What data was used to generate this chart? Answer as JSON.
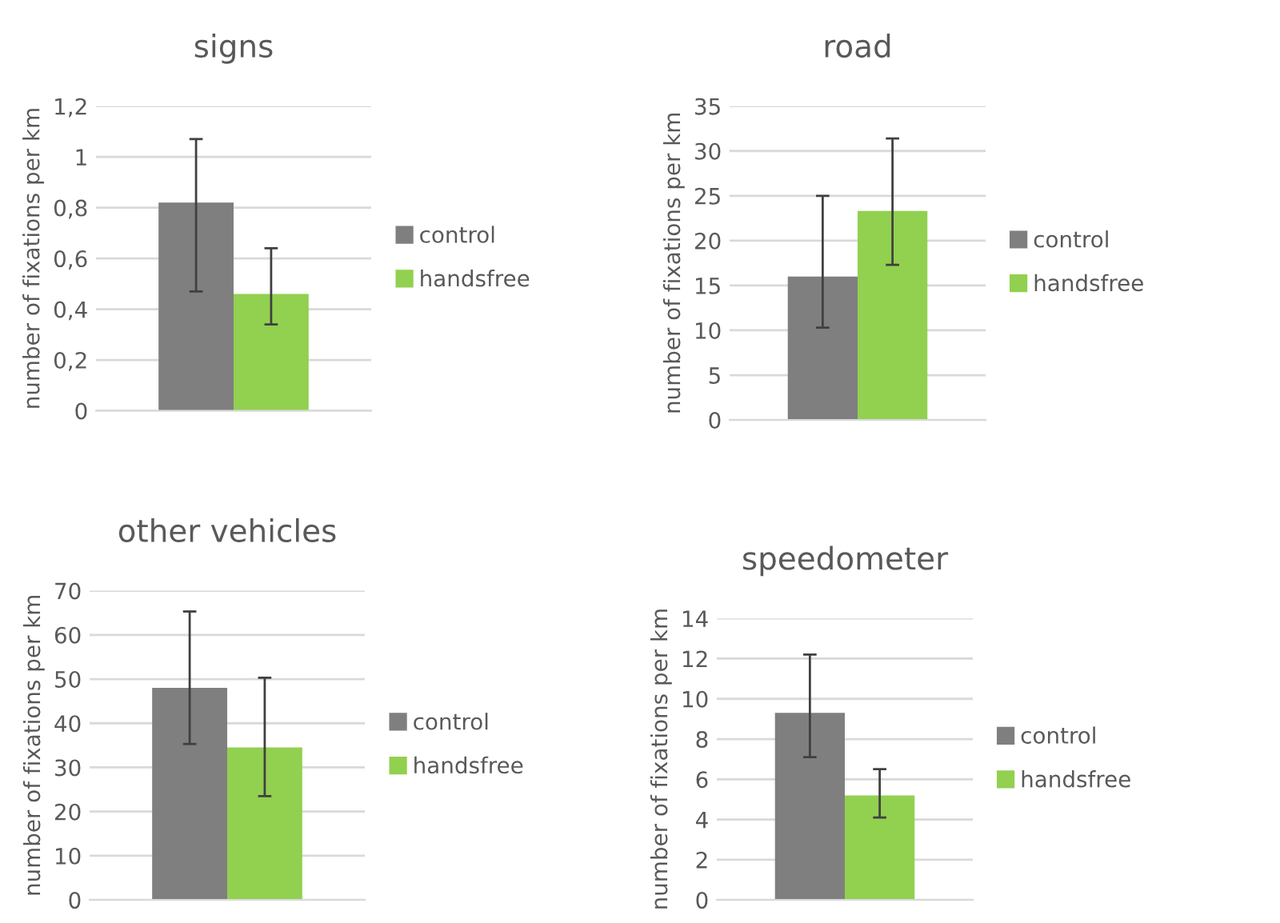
{
  "chart_data": [
    {
      "type": "bar",
      "title": "signs",
      "ylabel": "number of fixations per km",
      "categories": [
        null
      ],
      "series": [
        {
          "name": "control",
          "color": "#7f7f7f",
          "values": [
            0.82
          ],
          "errors": [
            [
              0.47,
              1.07
            ]
          ]
        },
        {
          "name": "handsfree",
          "color": "#92d050",
          "values": [
            0.46
          ],
          "errors": [
            [
              0.34,
              0.64
            ]
          ]
        }
      ],
      "ylim": [
        0,
        1.2
      ],
      "yticks": [
        0,
        {
          "value": 0.2,
          "label": "0,2"
        },
        {
          "value": 0.4,
          "label": "0,4"
        },
        {
          "value": 0.6,
          "label": "0,6"
        },
        {
          "value": 0.8,
          "label": "0,8"
        },
        1,
        {
          "value": 1.2,
          "label": "1,2"
        }
      ],
      "grid": "y",
      "legend": "right",
      "tick_labels": "y"
    },
    {
      "type": "bar",
      "title": "road",
      "ylabel": "number of fixations per km",
      "categories": [
        null
      ],
      "series": [
        {
          "name": "control",
          "color": "#7f7f7f",
          "values": [
            16
          ],
          "errors": [
            [
              10.3,
              25
            ]
          ]
        },
        {
          "name": "handsfree",
          "color": "#92d050",
          "values": [
            23.3
          ],
          "errors": [
            [
              17.3,
              31.4
            ]
          ]
        }
      ],
      "ylim": [
        0,
        35
      ],
      "yticks": [
        0,
        5,
        10,
        15,
        20,
        25,
        30,
        35
      ],
      "grid": "y",
      "legend": "right",
      "tick_labels": "y"
    },
    {
      "type": "bar",
      "title": "other vehicles",
      "ylabel": "number of fixations per km",
      "categories": [
        null
      ],
      "series": [
        {
          "name": "control",
          "color": "#7f7f7f",
          "values": [
            48
          ],
          "errors": [
            [
              35.3,
              65.3
            ]
          ]
        },
        {
          "name": "handsfree",
          "color": "#92d050",
          "values": [
            34.5
          ],
          "errors": [
            [
              23.5,
              50.3
            ]
          ]
        }
      ],
      "ylim": [
        0,
        70
      ],
      "yticks": [
        0,
        10,
        20,
        30,
        40,
        50,
        60,
        70
      ],
      "grid": "y",
      "legend": "right",
      "tick_labels": "y"
    },
    {
      "type": "bar",
      "title": "speedometer",
      "ylabel": "number of fixations per km",
      "categories": [
        null
      ],
      "series": [
        {
          "name": "control",
          "color": "#7f7f7f",
          "values": [
            9.3
          ],
          "errors": [
            [
              7.1,
              12.2
            ]
          ]
        },
        {
          "name": "handsfree",
          "color": "#92d050",
          "values": [
            5.2
          ],
          "errors": [
            [
              4.1,
              6.5
            ]
          ]
        }
      ],
      "ylim": [
        0,
        14
      ],
      "yticks": [
        0,
        2,
        4,
        6,
        8,
        10,
        12,
        14
      ],
      "grid": "y",
      "legend": "right",
      "tick_labels": "y"
    }
  ]
}
